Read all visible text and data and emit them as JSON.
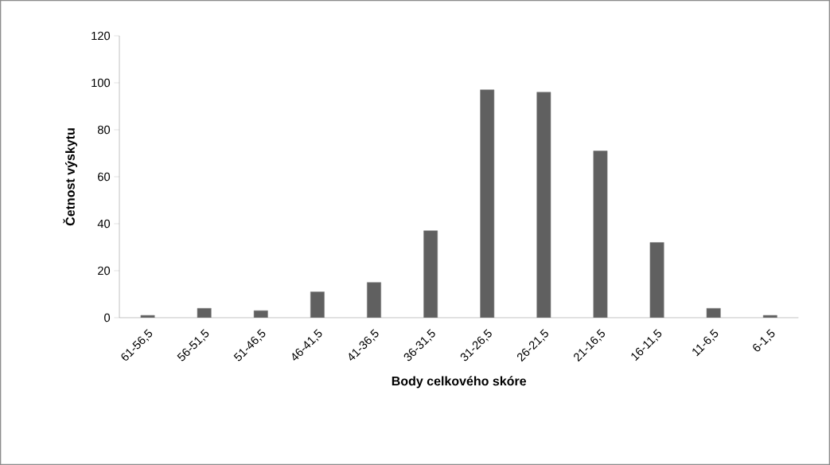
{
  "chart_data": {
    "type": "bar",
    "xlabel": "Body celkového skóre",
    "ylabel": "Četnost výskytu",
    "categories": [
      "61-56,5",
      "56-51,5",
      "51-46,5",
      "46-41,5",
      "41-36,5",
      "36-31,5",
      "31-26,5",
      "26-21,5",
      "21-16,5",
      "16-11,5",
      "11-6,5",
      "6-1,5"
    ],
    "values": [
      1,
      4,
      3,
      11,
      15,
      37,
      97,
      96,
      71,
      32,
      4,
      1
    ],
    "color": "#606060",
    "ylim": [
      0,
      120
    ],
    "yticks": [
      0,
      20,
      40,
      60,
      80,
      100,
      120
    ],
    "grid": false
  }
}
